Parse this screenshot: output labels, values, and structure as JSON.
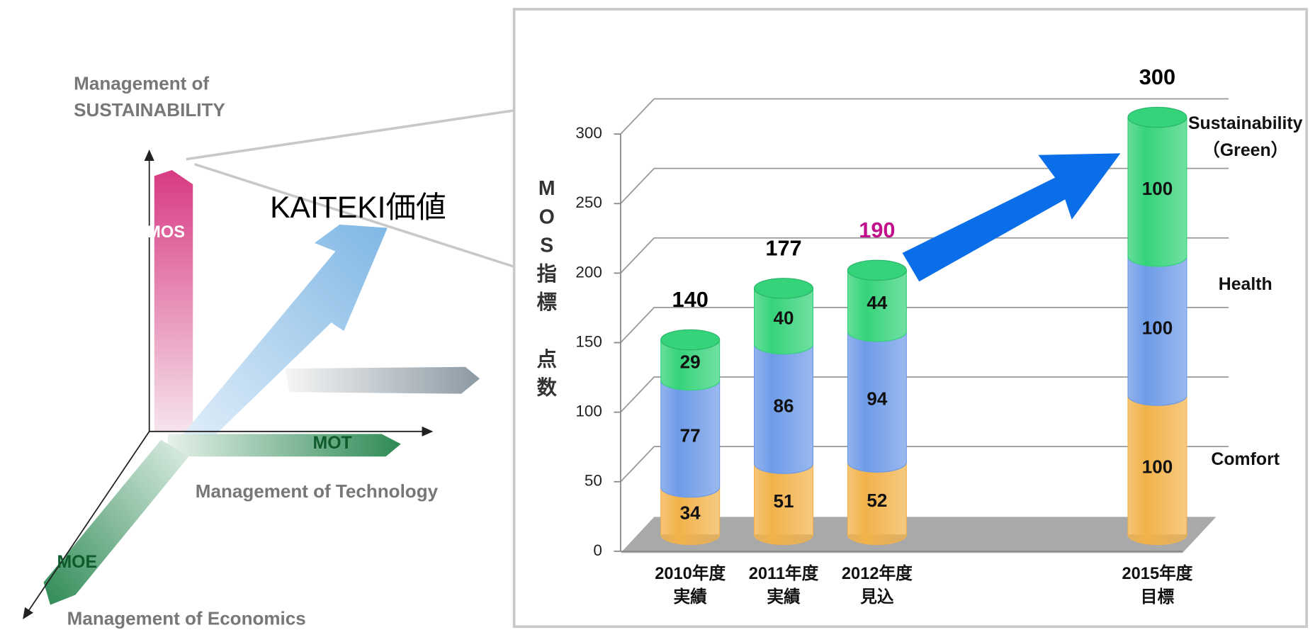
{
  "diagram": {
    "sustainability_label": "Management of\nSUSTAINABILITY",
    "center_label": "KAITEKI価値",
    "mos": "MOS",
    "mot": "MOT",
    "moe": "MOE",
    "technology_label": "Management of Technology",
    "economics_label": "Management of Economics"
  },
  "chart_data": {
    "type": "bar",
    "stacked": true,
    "y_label": "MOS指標　点数",
    "categories": [
      "2010年度\n実績",
      "2011年度\n実績",
      "2012年度\n見込",
      null,
      null,
      "2015年度\n目標"
    ],
    "series": [
      {
        "name": "Comfort",
        "color": "#f2b24a",
        "values": [
          34,
          51,
          52,
          null,
          null,
          100
        ]
      },
      {
        "name": "Health",
        "color": "#6e9be8",
        "values": [
          77,
          86,
          94,
          null,
          null,
          100
        ]
      },
      {
        "name": "Sustainability\n（Green）",
        "color": "#35d37a",
        "values": [
          29,
          40,
          44,
          null,
          null,
          100
        ]
      }
    ],
    "totals": [
      140,
      177,
      190,
      null,
      null,
      300
    ],
    "total_colors": [
      "#000000",
      "#000000",
      "#c0108c",
      null,
      null,
      "#000000"
    ],
    "ylim": [
      0,
      300
    ],
    "yticks": [
      0,
      50,
      100,
      150,
      200,
      250,
      300
    ],
    "grid": true
  }
}
